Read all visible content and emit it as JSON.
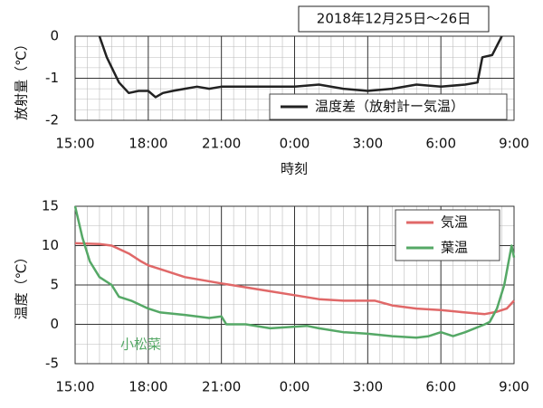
{
  "chart_data": [
    {
      "type": "line",
      "title": "2018年12月25日～26日",
      "x_label": "時刻",
      "y_label": "放射量（℃）",
      "xlim": [
        15,
        33
      ],
      "xticks": [
        {
          "value": 15,
          "label": "15:00"
        },
        {
          "value": 18,
          "label": "18:00"
        },
        {
          "value": 21,
          "label": "21:00"
        },
        {
          "value": 24,
          "label": "0:00"
        },
        {
          "value": 27,
          "label": "3:00"
        },
        {
          "value": 30,
          "label": "6:00"
        },
        {
          "value": 33,
          "label": "9:00"
        }
      ],
      "ylim": [
        -2,
        0
      ],
      "yticks": [
        -2,
        -1,
        0
      ],
      "grid": true,
      "legend": "lower right",
      "series": [
        {
          "name": "温度差（放射計ー気温）",
          "color": "#222222",
          "x": [
            16.0,
            16.3,
            16.8,
            17.2,
            17.6,
            18.0,
            18.3,
            18.6,
            19.0,
            19.5,
            20.0,
            20.5,
            21.0,
            22.0,
            23.0,
            24.0,
            25.0,
            26.0,
            27.0,
            28.0,
            29.0,
            30.0,
            31.0,
            31.5,
            31.7,
            32.1,
            32.5
          ],
          "values": [
            0,
            -0.5,
            -1.1,
            -1.35,
            -1.3,
            -1.3,
            -1.45,
            -1.35,
            -1.3,
            -1.25,
            -1.2,
            -1.25,
            -1.2,
            -1.2,
            -1.2,
            -1.2,
            -1.15,
            -1.25,
            -1.3,
            -1.25,
            -1.15,
            -1.2,
            -1.15,
            -1.1,
            -0.5,
            -0.45,
            0
          ]
        }
      ]
    },
    {
      "type": "line",
      "y_label": "温度（℃）",
      "annotation": "小松菜",
      "xlim": [
        15,
        33
      ],
      "xticks": [
        {
          "value": 15,
          "label": "15:00"
        },
        {
          "value": 18,
          "label": "18:00"
        },
        {
          "value": 21,
          "label": "21:00"
        },
        {
          "value": 24,
          "label": "0:00"
        },
        {
          "value": 27,
          "label": "3:00"
        },
        {
          "value": 30,
          "label": "6:00"
        },
        {
          "value": 33,
          "label": "9:00"
        }
      ],
      "ylim": [
        -5,
        15
      ],
      "yticks": [
        -5,
        0,
        5,
        10,
        15
      ],
      "grid": true,
      "legend": "upper right",
      "series": [
        {
          "name": "気温",
          "color": "#e06868",
          "x": [
            15,
            16,
            16.5,
            17.2,
            17.7,
            18,
            18.5,
            19.5,
            21,
            22,
            23,
            24,
            25,
            26,
            27.3,
            28,
            29,
            30,
            31,
            31.8,
            32.3,
            32.7,
            33
          ],
          "values": [
            10.3,
            10.2,
            10,
            9,
            8,
            7.5,
            7,
            6,
            5.2,
            4.7,
            4.2,
            3.7,
            3.2,
            3,
            3,
            2.4,
            2,
            1.8,
            1.5,
            1.3,
            1.6,
            2,
            3
          ]
        },
        {
          "name": "葉温",
          "color": "#55a866",
          "x": [
            15,
            15.3,
            15.6,
            16,
            16.5,
            16.8,
            17.3,
            18,
            18.5,
            19.5,
            20.5,
            21,
            21.2,
            22,
            23,
            24,
            24.5,
            25,
            26,
            27,
            28,
            29,
            29.5,
            30,
            30.5,
            31,
            31.8,
            32,
            32.3,
            32.6,
            32.9,
            33
          ],
          "values": [
            15,
            11,
            8,
            6,
            5,
            3.5,
            3,
            2,
            1.5,
            1.2,
            0.8,
            1,
            0,
            0,
            -0.5,
            -0.3,
            -0.2,
            -0.5,
            -1,
            -1.2,
            -1.5,
            -1.7,
            -1.5,
            -1,
            -1.5,
            -1,
            0,
            0.3,
            2,
            5,
            10,
            8.5
          ]
        }
      ]
    }
  ]
}
